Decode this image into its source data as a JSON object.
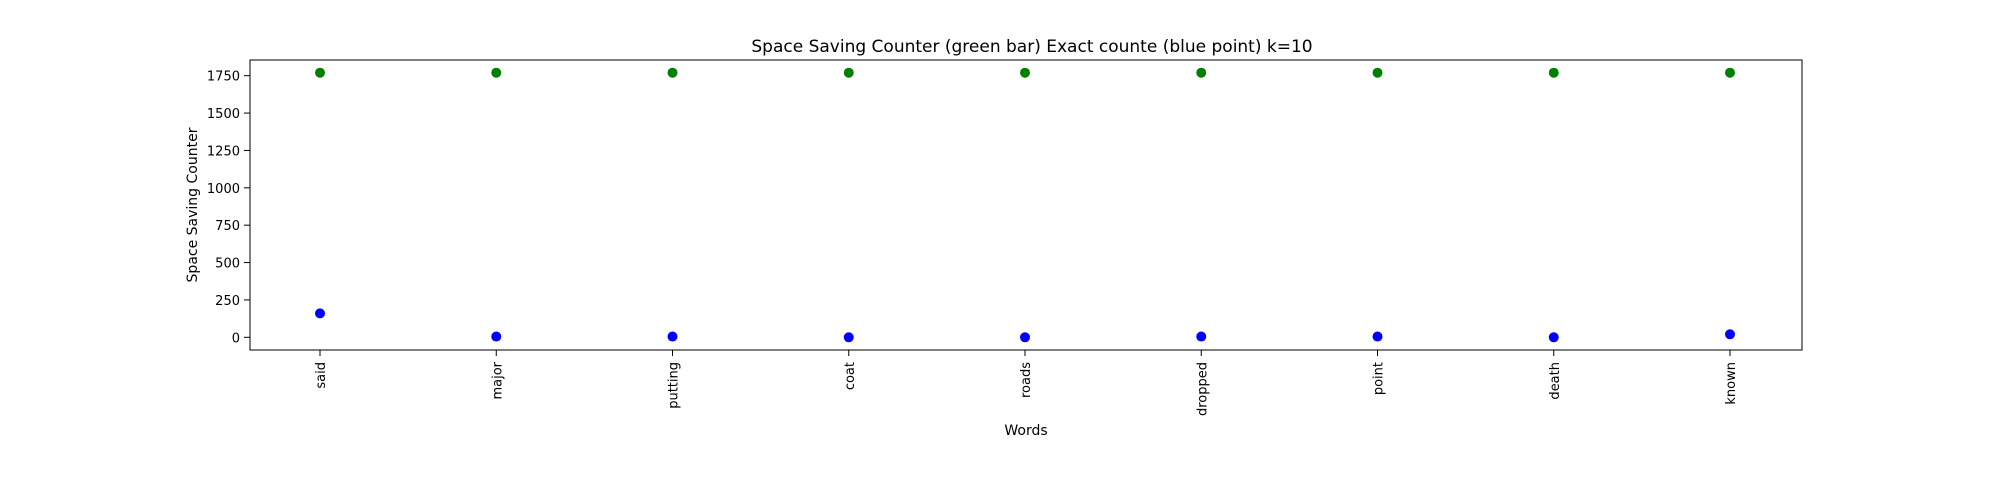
{
  "chart_data": {
    "type": "scatter",
    "title": "Space Saving Counter (green bar)  Exact counte (blue point) k=10",
    "xlabel": "Words",
    "ylabel": "Space Saving Counter",
    "categories": [
      "said",
      "major",
      "putting",
      "coat",
      "roads",
      "dropped",
      "point",
      "death",
      "known"
    ],
    "ylim": [
      -85,
      1855
    ],
    "yticks": [
      0,
      250,
      500,
      750,
      1000,
      1250,
      1500,
      1750
    ],
    "grid": false,
    "series": [
      {
        "color": "#008000",
        "values": [
          1770,
          1770,
          1770,
          1770,
          1770,
          1770,
          1770,
          1770,
          1770
        ]
      },
      {
        "color": "#0000ff",
        "values": [
          160,
          5,
          5,
          0,
          0,
          5,
          5,
          0,
          20
        ]
      }
    ]
  }
}
